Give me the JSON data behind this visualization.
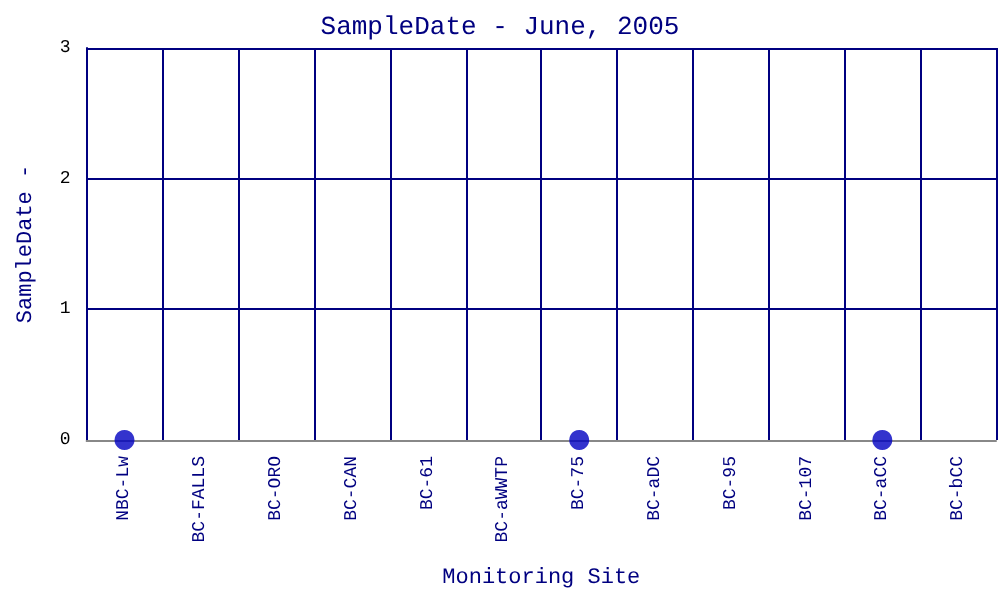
{
  "chart_data": {
    "type": "scatter",
    "title": "SampleDate - June, 2005",
    "xlabel": "Monitoring Site",
    "ylabel": "SampleDate -",
    "categories": [
      "NBC-Lw",
      "BC-FALLS",
      "BC-ORO",
      "BC-CAN",
      "BC-61",
      "BC-aWWTP",
      "BC-75",
      "BC-aDC",
      "BC-95",
      "BC-107",
      "BC-aCC",
      "BC-bCC"
    ],
    "series": [
      {
        "color": "#0000c0",
        "values": [
          0,
          null,
          null,
          null,
          null,
          null,
          0,
          null,
          null,
          null,
          0,
          null
        ]
      }
    ],
    "ylim": [
      0,
      3
    ],
    "yticks": [
      0,
      1,
      2,
      3
    ],
    "grid": true,
    "marker": "circle"
  }
}
